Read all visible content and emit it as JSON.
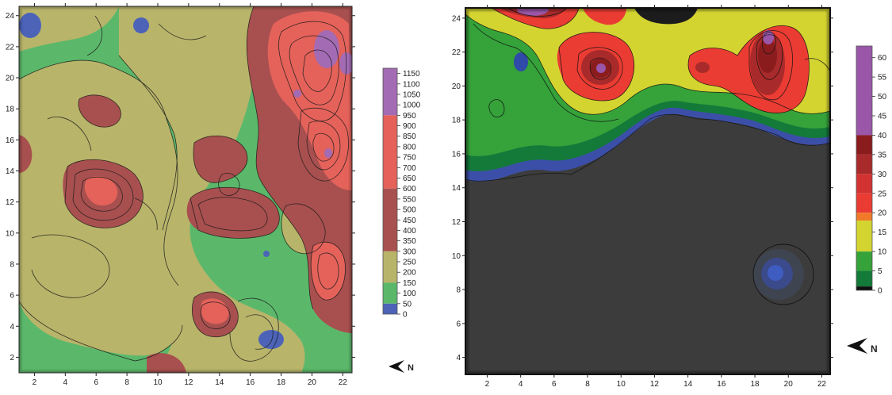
{
  "left_map": {
    "x_ticks": [
      "2",
      "4",
      "6",
      "8",
      "10",
      "12",
      "14",
      "16",
      "18",
      "20",
      "22"
    ],
    "y_ticks": [
      "2",
      "4",
      "6",
      "8",
      "10",
      "12",
      "14",
      "16",
      "18",
      "20",
      "22",
      "24"
    ],
    "x_range": [
      1,
      22.6
    ],
    "y_range": [
      1,
      24.6
    ],
    "legend": {
      "labels": [
        "1150",
        "1100",
        "1050",
        "1000",
        "950",
        "900",
        "850",
        "800",
        "750",
        "700",
        "650",
        "600",
        "550",
        "500",
        "450",
        "400",
        "350",
        "300",
        "250",
        "200",
        "150",
        "100",
        "50",
        "0"
      ],
      "bands": [
        {
          "from": 950,
          "to": 1175,
          "color": "#a46bb5"
        },
        {
          "from": 600,
          "to": 950,
          "color": "#e4625a"
        },
        {
          "from": 300,
          "to": 600,
          "color": "#a8504f"
        },
        {
          "from": 150,
          "to": 300,
          "color": "#b8b46a"
        },
        {
          "from": 50,
          "to": 150,
          "color": "#5bb86b"
        },
        {
          "from": 0,
          "to": 50,
          "color": "#4c63b8"
        }
      ],
      "range": [
        0,
        1175
      ]
    }
  },
  "right_map": {
    "x_ticks": [
      "2",
      "4",
      "6",
      "8",
      "10",
      "12",
      "14",
      "16",
      "18",
      "20",
      "22"
    ],
    "y_ticks": [
      "4",
      "6",
      "8",
      "10",
      "12",
      "14",
      "16",
      "18",
      "20",
      "22",
      "24"
    ],
    "x_range": [
      0.7,
      22.5
    ],
    "y_range": [
      3,
      24.6
    ],
    "legend": {
      "labels": [
        "60",
        "55",
        "50",
        "45",
        "40",
        "35",
        "30",
        "25",
        "20",
        "15",
        "10",
        "5",
        "0"
      ],
      "bands": [
        {
          "from": 40,
          "to": 63,
          "color": "#9a56a8"
        },
        {
          "from": 35,
          "to": 40,
          "color": "#8b1c1e"
        },
        {
          "from": 30,
          "to": 35,
          "color": "#a92a2a"
        },
        {
          "from": 25,
          "to": 30,
          "color": "#d33232"
        },
        {
          "from": 20,
          "to": 25,
          "color": "#ea3c33"
        },
        {
          "from": 18,
          "to": 20,
          "color": "#f07a2a"
        },
        {
          "from": 10,
          "to": 18,
          "color": "#d4d431"
        },
        {
          "from": 5,
          "to": 10,
          "color": "#35a23a"
        },
        {
          "from": 1,
          "to": 5,
          "color": "#137a3a"
        },
        {
          "from": 0,
          "to": 1,
          "color": "#111111"
        }
      ],
      "range": [
        0,
        63
      ]
    }
  },
  "north_arrow_label": "N",
  "colors": {
    "frame": "#222222",
    "dark_bg": "#3c3c3c",
    "contour": "#1a1a1a"
  }
}
